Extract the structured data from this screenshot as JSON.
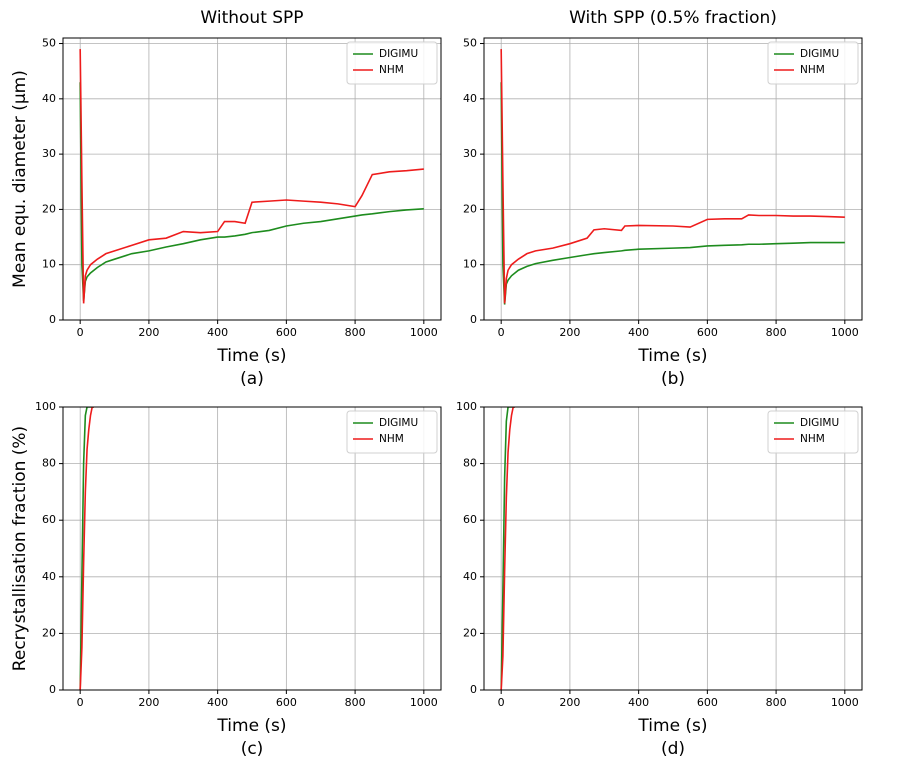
{
  "chart_data": [
    {
      "type": "line",
      "title": "Without SPP",
      "ylabel": "Mean equ. diameter (µm)",
      "xlabel": "Time (s)",
      "caption": "(a)",
      "x": [
        0,
        5,
        10,
        15,
        20,
        30,
        50,
        75,
        100,
        150,
        200,
        250,
        300,
        350,
        400,
        420,
        450,
        480,
        500,
        550,
        600,
        650,
        700,
        750,
        800,
        820,
        850,
        900,
        950,
        1000
      ],
      "series": [
        {
          "name": "DIGIMU",
          "color": "#1e8c1e",
          "values": [
            43,
            10,
            3.5,
            7,
            7.8,
            8.5,
            9.5,
            10.5,
            11,
            12,
            12.5,
            13.2,
            13.8,
            14.5,
            15,
            15,
            15.2,
            15.5,
            15.8,
            16.2,
            17,
            17.5,
            17.8,
            18.3,
            18.8,
            19,
            19.2,
            19.6,
            19.9,
            20.1
          ]
        },
        {
          "name": "NHM",
          "color": "#ee1c1c",
          "values": [
            49,
            25,
            3,
            8,
            9,
            10,
            11,
            12,
            12.5,
            13.5,
            14.5,
            14.8,
            16,
            15.8,
            16,
            17.8,
            17.8,
            17.5,
            21.3,
            21.5,
            21.7,
            21.5,
            21.3,
            21,
            20.5,
            22.5,
            26.3,
            26.8,
            27,
            27.3
          ]
        }
      ],
      "xlim": [
        -50,
        1050
      ],
      "ylim": [
        0,
        51
      ],
      "xticks": [
        0,
        200,
        400,
        600,
        800,
        1000
      ],
      "yticks": [
        0,
        10,
        20,
        30,
        40,
        50
      ],
      "grid": true,
      "legend": "upper right"
    },
    {
      "type": "line",
      "title": "With SPP (0.5% fraction)",
      "xlabel": "Time (s)",
      "caption": "(b)",
      "x": [
        0,
        5,
        10,
        15,
        20,
        30,
        50,
        75,
        100,
        150,
        200,
        250,
        270,
        300,
        350,
        360,
        400,
        500,
        550,
        600,
        650,
        700,
        720,
        750,
        800,
        850,
        900,
        950,
        1000
      ],
      "series": [
        {
          "name": "DIGIMU",
          "color": "#1e8c1e",
          "values": [
            43,
            10,
            2.8,
            6.5,
            7.2,
            8,
            9,
            9.7,
            10.2,
            10.8,
            11.3,
            11.8,
            12,
            12.2,
            12.5,
            12.6,
            12.8,
            13,
            13.1,
            13.4,
            13.5,
            13.6,
            13.7,
            13.7,
            13.8,
            13.9,
            14,
            14,
            14
          ]
        },
        {
          "name": "NHM",
          "color": "#ee1c1c",
          "values": [
            49,
            25,
            3,
            7.5,
            9,
            10,
            11,
            12,
            12.5,
            13,
            13.8,
            14.8,
            16.3,
            16.5,
            16.2,
            17,
            17.1,
            17,
            16.8,
            18.2,
            18.3,
            18.3,
            19,
            18.9,
            18.9,
            18.8,
            18.8,
            18.7,
            18.6
          ]
        }
      ],
      "xlim": [
        -50,
        1050
      ],
      "ylim": [
        0,
        51
      ],
      "xticks": [
        0,
        200,
        400,
        600,
        800,
        1000
      ],
      "yticks": [
        0,
        10,
        20,
        30,
        40,
        50
      ],
      "grid": true,
      "legend": "upper right"
    },
    {
      "type": "line",
      "ylabel": "Recrystallisation fraction (%)",
      "xlabel": "Time (s)",
      "caption": "(c)",
      "x": [
        0,
        5,
        10,
        15,
        20,
        25,
        30,
        35,
        40
      ],
      "series": [
        {
          "name": "DIGIMU",
          "color": "#1e8c1e",
          "values": [
            0,
            40,
            80,
            97,
            100,
            100,
            100,
            100,
            100
          ]
        },
        {
          "name": "NHM",
          "color": "#ee1c1c",
          "values": [
            0,
            15,
            45,
            70,
            85,
            92,
            97,
            100,
            100
          ]
        }
      ],
      "xlim": [
        -50,
        1050
      ],
      "ylim": [
        0,
        100
      ],
      "xticks": [
        0,
        200,
        400,
        600,
        800,
        1000
      ],
      "yticks": [
        0,
        20,
        40,
        60,
        80,
        100
      ],
      "grid": true,
      "legend": "upper right"
    },
    {
      "type": "line",
      "xlabel": "Time (s)",
      "caption": "(d)",
      "x": [
        0,
        5,
        10,
        15,
        20,
        25,
        30,
        35,
        40
      ],
      "series": [
        {
          "name": "DIGIMU",
          "color": "#1e8c1e",
          "values": [
            0,
            35,
            75,
            95,
            100,
            100,
            100,
            100,
            100
          ]
        },
        {
          "name": "NHM",
          "color": "#ee1c1c",
          "values": [
            0,
            12,
            42,
            68,
            84,
            92,
            97,
            100,
            100
          ]
        }
      ],
      "xlim": [
        -50,
        1050
      ],
      "ylim": [
        0,
        100
      ],
      "xticks": [
        0,
        200,
        400,
        600,
        800,
        1000
      ],
      "yticks": [
        0,
        20,
        40,
        60,
        80,
        100
      ],
      "grid": true,
      "legend": "upper right"
    }
  ]
}
